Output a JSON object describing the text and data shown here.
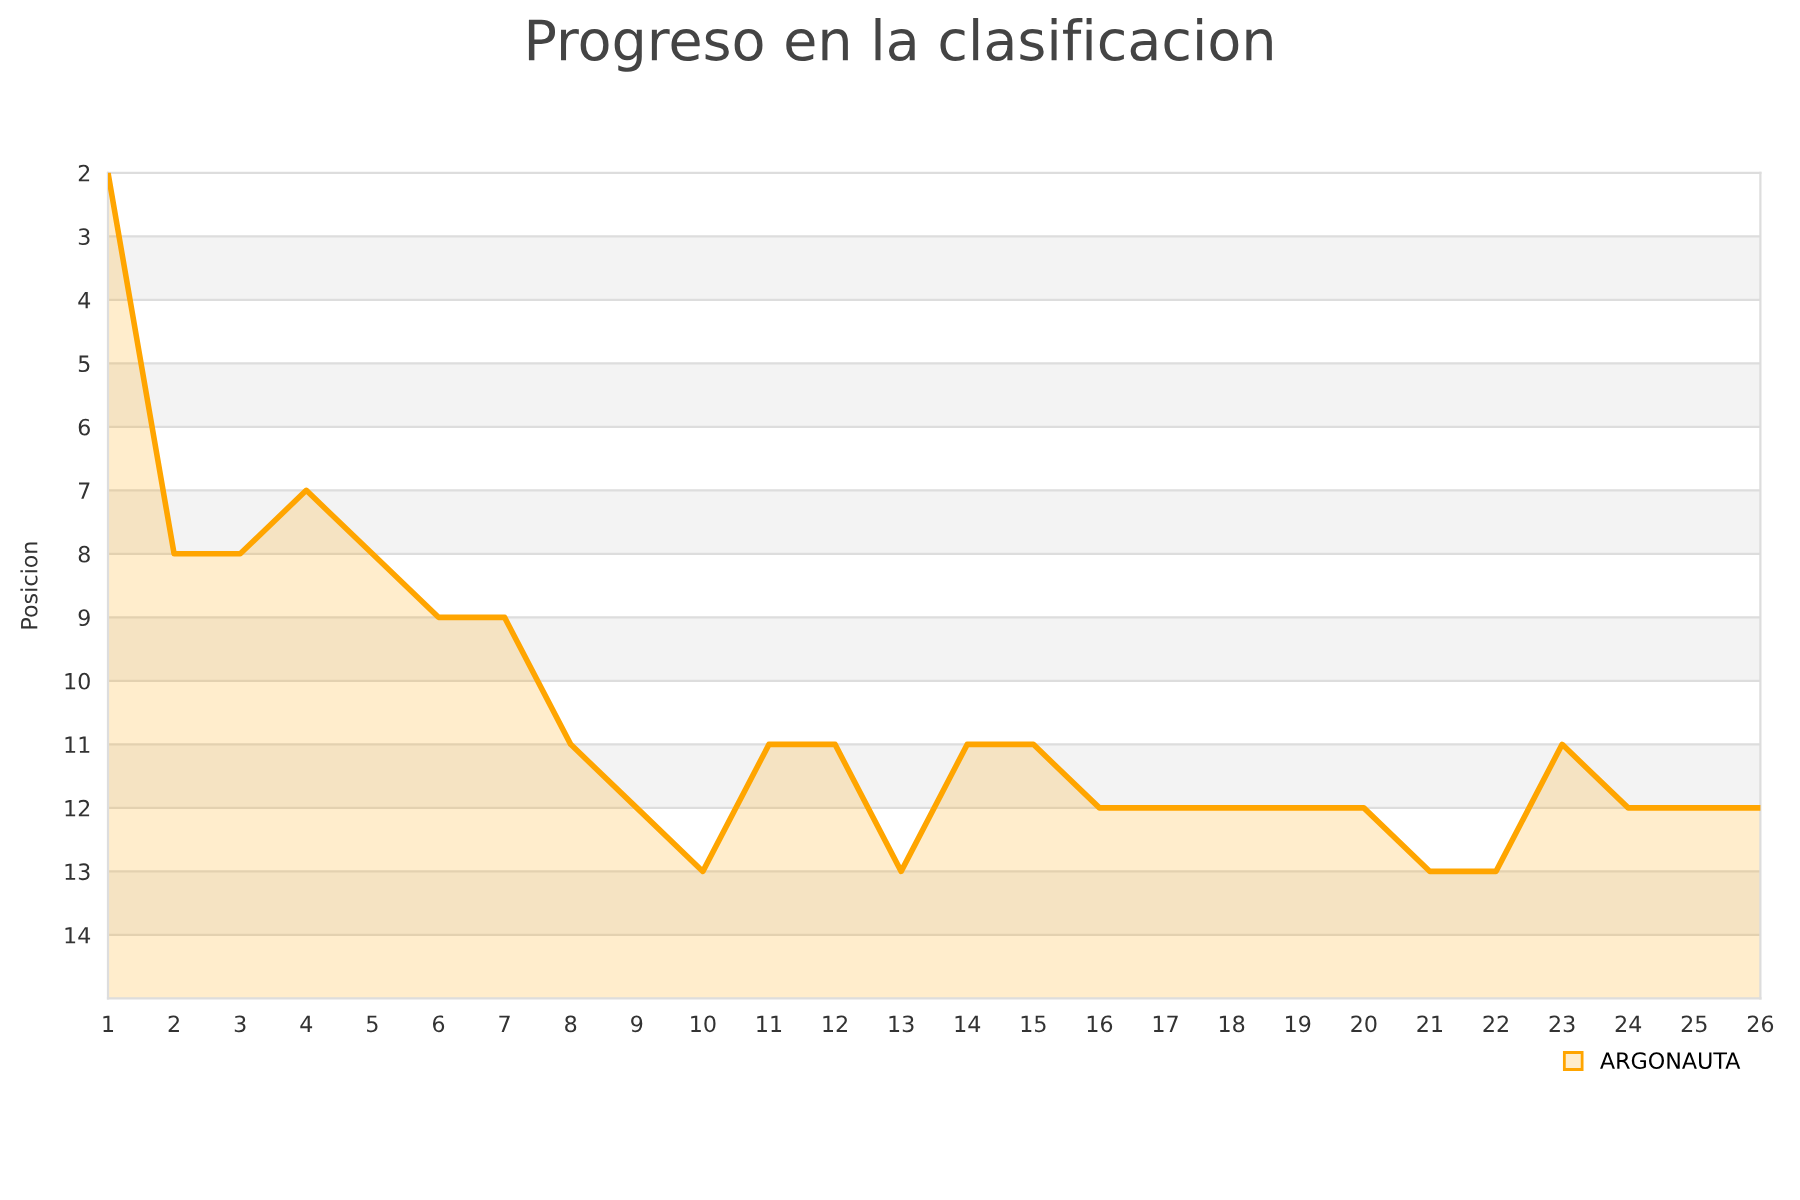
{
  "chart_data": {
    "type": "area",
    "title": "Progreso en la clasificacion",
    "ylabel": "Posicion",
    "x": [
      1,
      2,
      3,
      4,
      5,
      6,
      7,
      8,
      9,
      10,
      11,
      12,
      13,
      14,
      15,
      16,
      17,
      18,
      19,
      20,
      21,
      22,
      23,
      24,
      25,
      26
    ],
    "series": [
      {
        "name": "ARGONAUTA",
        "color": "#ffa500",
        "values": [
          2,
          8,
          8,
          7,
          8,
          9,
          9,
          11,
          12,
          13,
          11,
          11,
          13,
          11,
          11,
          12,
          12,
          12,
          12,
          12,
          13,
          13,
          11,
          12,
          12,
          12
        ]
      }
    ],
    "xlim": [
      1,
      26
    ],
    "xticks": [
      1,
      2,
      3,
      4,
      5,
      6,
      7,
      8,
      9,
      10,
      11,
      12,
      13,
      14,
      15,
      16,
      17,
      18,
      19,
      20,
      21,
      22,
      23,
      24,
      25,
      26
    ],
    "ylim": [
      15,
      2
    ],
    "yticks": [
      2,
      3,
      4,
      5,
      6,
      7,
      8,
      9,
      10,
      11,
      12,
      13,
      14
    ],
    "bands": [
      {
        "axis": "y",
        "from": 3,
        "to": 4,
        "color": "#f3f3f3"
      },
      {
        "axis": "y",
        "from": 5,
        "to": 6,
        "color": "#f3f3f3"
      },
      {
        "axis": "y",
        "from": 7,
        "to": 8,
        "color": "#f3f3f3"
      },
      {
        "axis": "y",
        "from": 9,
        "to": 10,
        "color": "#f3f3f3"
      },
      {
        "axis": "y",
        "from": 11,
        "to": 12,
        "color": "#f3f3f3"
      },
      {
        "axis": "y",
        "from": 13,
        "to": 14,
        "color": "#f3f3f3"
      }
    ],
    "grid": "y",
    "legend": "bottom right",
    "marker": "none",
    "line_style": "solid"
  }
}
